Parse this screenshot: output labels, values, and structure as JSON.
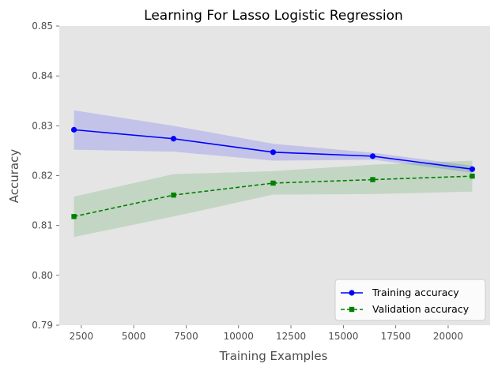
{
  "chart_data": {
    "type": "line",
    "title": "Learning For Lasso Logistic Regression",
    "xlabel": "Training Examples",
    "ylabel": "Accuracy",
    "xlim": [
      1450,
      22000
    ],
    "ylim": [
      0.79,
      0.85
    ],
    "xticks": [
      2500,
      5000,
      7500,
      10000,
      12500,
      15000,
      17500,
      20000
    ],
    "yticks": [
      0.79,
      0.8,
      0.81,
      0.82,
      0.83,
      0.84,
      0.85
    ],
    "xtick_labels": [
      "2500",
      "5000",
      "7500",
      "10000",
      "12500",
      "15000",
      "17500",
      "20000"
    ],
    "ytick_labels": [
      "0.79",
      "0.80",
      "0.81",
      "0.82",
      "0.83",
      "0.84",
      "0.85"
    ],
    "grid": false,
    "legend_position": "lower-right",
    "series": [
      {
        "name": "Training accuracy",
        "x": [
          2150,
          6900,
          11650,
          16400,
          21150
        ],
        "y": [
          0.8292,
          0.8274,
          0.8247,
          0.8239,
          0.8213
        ],
        "upper": [
          0.8331,
          0.83,
          0.8264,
          0.8246,
          0.822
        ],
        "lower": [
          0.8252,
          0.8248,
          0.823,
          0.8232,
          0.8206
        ],
        "color": "#0000ff",
        "band_color": "#0000ff",
        "linestyle": "solid",
        "marker": "circle"
      },
      {
        "name": "Validation accuracy",
        "x": [
          2150,
          6900,
          11650,
          16400,
          21150
        ],
        "y": [
          0.8118,
          0.8161,
          0.8185,
          0.8192,
          0.8199
        ],
        "upper": [
          0.8158,
          0.8203,
          0.8209,
          0.8222,
          0.823
        ],
        "lower": [
          0.8077,
          0.8118,
          0.8162,
          0.8163,
          0.8168
        ],
        "color": "#008000",
        "band_color": "#008000",
        "linestyle": "dashed",
        "marker": "square"
      }
    ]
  }
}
